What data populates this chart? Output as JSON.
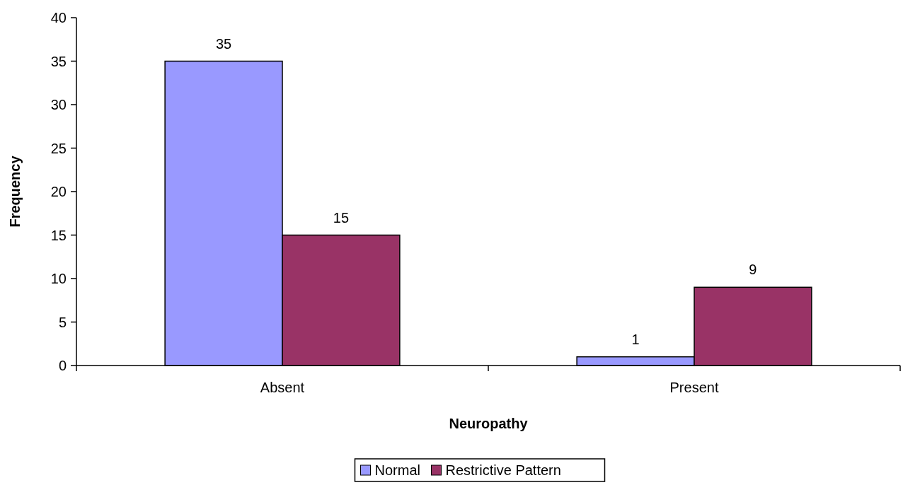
{
  "chart_data": {
    "type": "bar",
    "xlabel": "Neuropathy",
    "ylabel": "Frequency",
    "categories": [
      "Absent",
      "Present"
    ],
    "series": [
      {
        "name": "Normal",
        "color": "#9999ff",
        "values": [
          35,
          1
        ]
      },
      {
        "name": "Restrictive Pattern",
        "color": "#993366",
        "values": [
          15,
          9
        ]
      }
    ],
    "ylim": [
      0,
      40
    ],
    "yticks": [
      0,
      5,
      10,
      15,
      20,
      25,
      30,
      35,
      40
    ],
    "data_labels": true,
    "legend": "bottom",
    "grid": false
  }
}
